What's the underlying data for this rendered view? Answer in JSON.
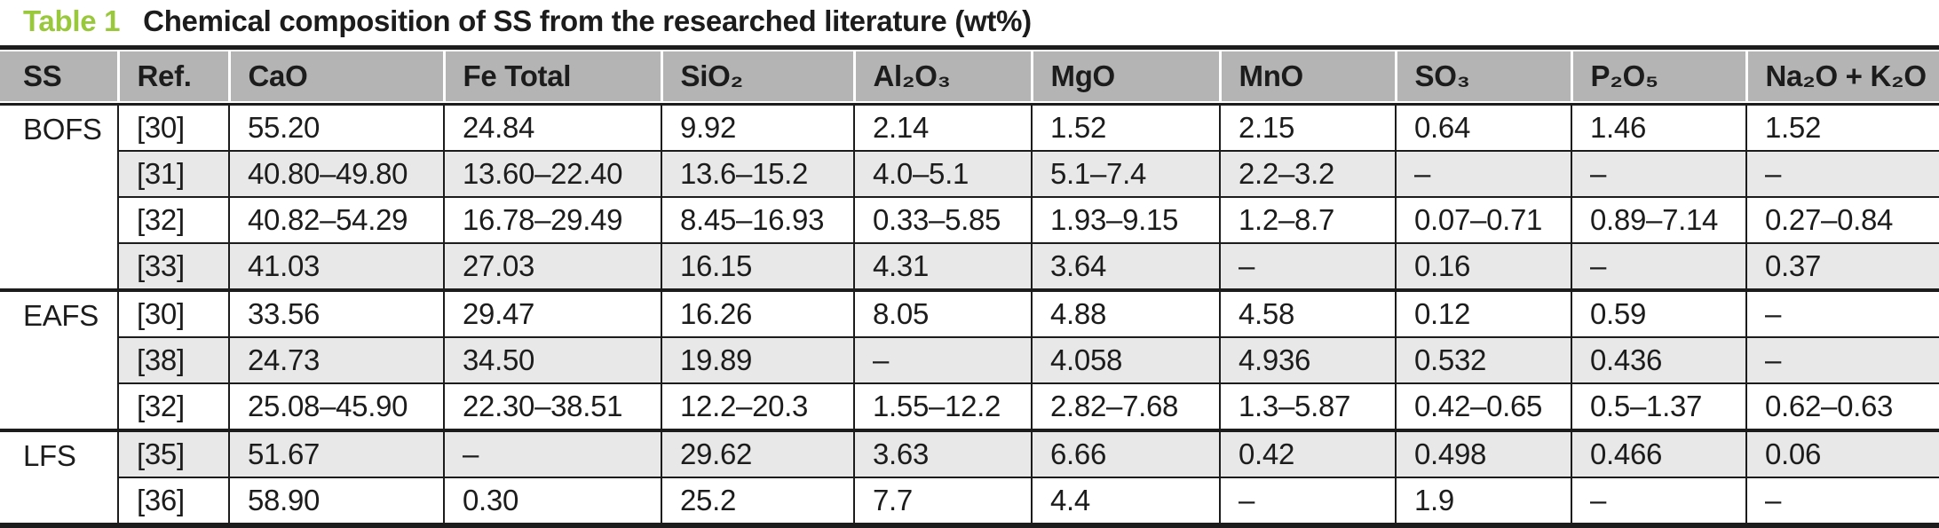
{
  "caption": {
    "label": "Table 1",
    "text": "Chemical composition of SS from the researched literature (wt%)"
  },
  "table": {
    "columns": [
      "SS",
      "Ref.",
      "CaO",
      "Fe Total",
      "SiO₂",
      "Al₂O₃",
      "MgO",
      "MnO",
      "SO₃",
      "P₂O₅",
      "Na₂O + K₂O"
    ],
    "groups": [
      {
        "ss": "BOFS",
        "rows": [
          {
            "ref": "[30]",
            "values": [
              "55.20",
              "24.84",
              "9.92",
              "2.14",
              "1.52",
              "2.15",
              "0.64",
              "1.46",
              "1.52"
            ]
          },
          {
            "ref": "[31]",
            "values": [
              "40.80–49.80",
              "13.60–22.40",
              "13.6–15.2",
              "4.0–5.1",
              "5.1–7.4",
              "2.2–3.2",
              "–",
              "–",
              "–"
            ]
          },
          {
            "ref": "[32]",
            "values": [
              "40.82–54.29",
              "16.78–29.49",
              "8.45–16.93",
              "0.33–5.85",
              "1.93–9.15",
              "1.2–8.7",
              "0.07–0.71",
              "0.89–7.14",
              "0.27–0.84"
            ]
          },
          {
            "ref": "[33]",
            "values": [
              "41.03",
              "27.03",
              "16.15",
              "4.31",
              "3.64",
              "–",
              "0.16",
              "–",
              "0.37"
            ]
          }
        ]
      },
      {
        "ss": "EAFS",
        "rows": [
          {
            "ref": "[30]",
            "values": [
              "33.56",
              "29.47",
              "16.26",
              "8.05",
              "4.88",
              "4.58",
              "0.12",
              "0.59",
              "–"
            ]
          },
          {
            "ref": "[38]",
            "values": [
              "24.73",
              "34.50",
              "19.89",
              "–",
              "4.058",
              "4.936",
              "0.532",
              "0.436",
              "–"
            ]
          },
          {
            "ref": "[32]",
            "values": [
              "25.08–45.90",
              "22.30–38.51",
              "12.2–20.3",
              "1.55–12.2",
              "2.82–7.68",
              "1.3–5.87",
              "0.42–0.65",
              "0.5–1.37",
              "0.62–0.63"
            ]
          }
        ]
      },
      {
        "ss": "LFS",
        "rows": [
          {
            "ref": "[35]",
            "values": [
              "51.67",
              "–",
              "29.62",
              "3.63",
              "6.66",
              "0.42",
              "0.498",
              "0.466",
              "0.06"
            ]
          },
          {
            "ref": "[36]",
            "values": [
              "58.90",
              "0.30",
              "25.2",
              "7.7",
              "4.4",
              "–",
              "1.9",
              "–",
              "–"
            ]
          }
        ]
      }
    ],
    "colors": {
      "accent_green": "#9ac83c",
      "header_bg": "#b4b4b4",
      "row_shade": "#e8e8e8",
      "border": "#1c1c1c"
    }
  }
}
